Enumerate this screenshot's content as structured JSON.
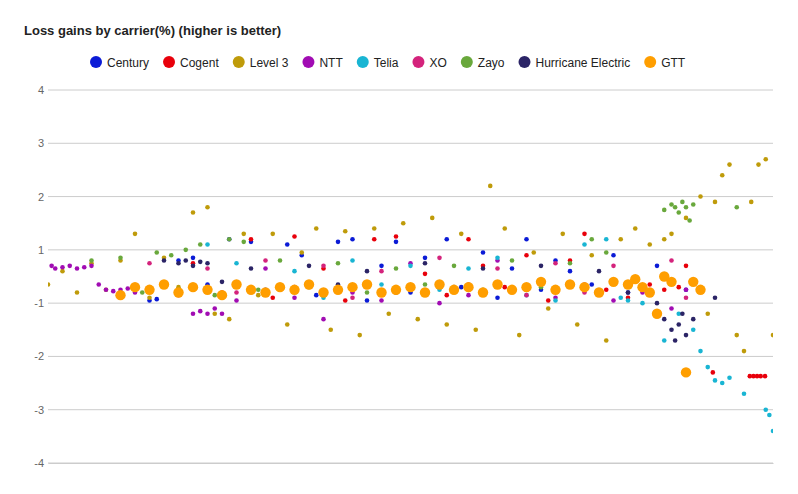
{
  "chart_data": {
    "type": "scatter",
    "title": "Loss gains by carrier(%) (higher is better)",
    "legend": "top",
    "grid": true,
    "tick_labels": "y",
    "xlim": [
      0,
      100
    ],
    "ylim": [
      -4,
      4
    ],
    "yticks": [
      4,
      3,
      2,
      1,
      -1,
      -2,
      -3,
      -4
    ],
    "series": [
      {
        "name": "Century",
        "color": "#0b1bd6",
        "marker": "circle",
        "x": [
          14,
          15,
          18,
          20,
          22,
          25,
          28,
          30,
          33,
          35,
          37,
          40,
          42,
          44,
          46,
          48,
          50,
          52,
          55,
          57,
          60,
          62,
          64,
          66,
          68,
          70,
          72,
          75,
          78,
          80,
          84,
          86,
          88
        ],
        "values": [
          -0.9,
          -0.85,
          0.6,
          0.7,
          -0.3,
          1.2,
          1.15,
          -0.5,
          1.1,
          0.8,
          -0.7,
          1.15,
          1.2,
          -0.9,
          0.4,
          1.15,
          -0.6,
          0.7,
          1.2,
          -0.4,
          0.9,
          -0.8,
          0.3,
          1.2,
          -0.5,
          0.6,
          0.2,
          -0.3,
          0.8,
          -0.6,
          0.4,
          -0.2,
          -0.5
        ]
      },
      {
        "name": "Cogent",
        "color": "#e8000b",
        "marker": "circle",
        "x": [
          20,
          24,
          28,
          31,
          34,
          38,
          41,
          45,
          48,
          52,
          55,
          58,
          60,
          63,
          66,
          69,
          72,
          74,
          77,
          80,
          83,
          85,
          87,
          88,
          91.7,
          96.8,
          97.3,
          97.8,
          98.3,
          98.9
        ],
        "values": [
          0.5,
          -0.6,
          1.2,
          -0.8,
          1.25,
          0.3,
          -0.9,
          1.2,
          1.25,
          0.1,
          -0.7,
          1.2,
          0.4,
          -0.4,
          0.8,
          -0.9,
          0.6,
          1.3,
          -0.5,
          -0.8,
          -0.3,
          -0.5,
          -0.4,
          0.4,
          -2.3,
          -2.37,
          -2.37,
          -2.37,
          -2.37,
          -2.37
        ]
      },
      {
        "name": "Level 3",
        "color": "#bf9b0a",
        "marker": "circle",
        "x": [
          0,
          2,
          4,
          6,
          8,
          10,
          12,
          14,
          16,
          18,
          20,
          22,
          23,
          25,
          27,
          29,
          31,
          33,
          35,
          37,
          39,
          41,
          43,
          45,
          47,
          49,
          51,
          53,
          55,
          57,
          59,
          61,
          63,
          65,
          67,
          69,
          71,
          73,
          75,
          77,
          79,
          81,
          83,
          85,
          86,
          88,
          90,
          91,
          92,
          93,
          94,
          95,
          96,
          97,
          98,
          99,
          100
        ],
        "values": [
          -0.3,
          0.2,
          -0.6,
          0.5,
          -0.5,
          0.6,
          1.3,
          -0.8,
          0.7,
          -0.4,
          1.7,
          1.8,
          -1.2,
          -1.3,
          1.3,
          -0.7,
          1.3,
          -1.4,
          0.9,
          1.4,
          -1.5,
          1.35,
          -1.6,
          1.4,
          -1.2,
          1.5,
          -1.3,
          1.6,
          -1.4,
          1.3,
          -1.5,
          2.2,
          1.4,
          -1.6,
          0.9,
          -1.1,
          1.3,
          -1.4,
          0.8,
          -1.7,
          1.2,
          1.4,
          1.1,
          1.2,
          1.3,
          1.6,
          2.0,
          -1.2,
          1.9,
          2.4,
          2.6,
          -1.6,
          -1.9,
          1.9,
          2.6,
          2.7,
          -1.6
        ]
      },
      {
        "name": "NTT",
        "color": "#a10cb3",
        "marker": "circle",
        "x": [
          0.5,
          1,
          2,
          3,
          4,
          5,
          6,
          7,
          8,
          9,
          10,
          11,
          12,
          20,
          21,
          22,
          23,
          24,
          26,
          30,
          34,
          38,
          42,
          46,
          50,
          54,
          58,
          62,
          66,
          70,
          74,
          78,
          82,
          86,
          88
        ],
        "values": [
          0.4,
          0.3,
          0.35,
          0.4,
          0.3,
          0.35,
          0.4,
          -0.3,
          -0.5,
          -0.55,
          -0.5,
          -0.45,
          -0.6,
          -1.2,
          -1.15,
          -1.2,
          -1.1,
          -1.2,
          -0.9,
          0.3,
          -0.8,
          -1.3,
          -0.6,
          -0.9,
          0.5,
          -1.0,
          -0.7,
          0.6,
          -0.5,
          -0.8,
          -0.3,
          -0.9,
          -0.6,
          -1.1,
          -0.5
        ]
      },
      {
        "name": "Telia",
        "color": "#19b5d3",
        "marker": "circle",
        "x": [
          22,
          26,
          30,
          34,
          38,
          42,
          46,
          50,
          54,
          58,
          62,
          66,
          70,
          74,
          77,
          79,
          80,
          82,
          85,
          87,
          89,
          90,
          91,
          92,
          93,
          94,
          96,
          99,
          99.5,
          100
        ],
        "values": [
          1.1,
          0.5,
          -0.6,
          0.2,
          -0.8,
          0.6,
          -0.3,
          0.4,
          -0.5,
          0.3,
          0.7,
          -0.7,
          -0.9,
          1.1,
          1.2,
          -0.8,
          -0.9,
          -1.0,
          -1.7,
          -1.2,
          -1.5,
          -1.9,
          -2.2,
          -2.45,
          -2.5,
          -2.4,
          -2.7,
          -3.0,
          -3.1,
          -3.4
        ]
      },
      {
        "name": "XO",
        "color": "#d4237c",
        "marker": "circle",
        "x": [
          14,
          18,
          22,
          26,
          30,
          34,
          38,
          42,
          46,
          50,
          54,
          58,
          62,
          66,
          70,
          74,
          78,
          82,
          86,
          88
        ],
        "values": [
          0.5,
          -0.7,
          0.3,
          -0.6,
          0.6,
          -0.4,
          0.4,
          -0.8,
          0.2,
          -0.5,
          0.7,
          -0.3,
          0.3,
          -0.7,
          0.5,
          -0.6,
          0.4,
          -0.4,
          0.6,
          -0.8
        ]
      },
      {
        "name": "Zayo",
        "color": "#69a83c",
        "marker": "circle",
        "x": [
          6,
          10,
          13,
          15,
          17,
          19,
          21,
          23,
          25,
          27,
          29,
          32,
          36,
          40,
          44,
          48,
          52,
          56,
          60,
          64,
          68,
          72,
          75,
          77,
          85,
          86,
          86.5,
          87,
          87.5,
          88,
          88.5,
          89,
          95
        ],
        "values": [
          0.6,
          0.7,
          -0.6,
          0.9,
          0.8,
          1.0,
          1.1,
          -0.7,
          1.2,
          1.15,
          -0.5,
          0.6,
          -0.4,
          0.5,
          -0.6,
          0.3,
          -0.3,
          0.4,
          -0.5,
          0.6,
          -0.4,
          0.5,
          1.2,
          0.9,
          1.75,
          1.85,
          1.8,
          1.7,
          1.9,
          1.8,
          1.55,
          1.85,
          1.8
        ]
      },
      {
        "name": "Hurricane Electric",
        "color": "#2b2466",
        "marker": "circle",
        "x": [
          16,
          18,
          19,
          20,
          21,
          22,
          24,
          28,
          32,
          36,
          40,
          44,
          48,
          52,
          56,
          60,
          64,
          68,
          72,
          76,
          80,
          84,
          85,
          86,
          86.5,
          87,
          87.5,
          88,
          89,
          92
        ],
        "values": [
          0.6,
          0.5,
          0.6,
          0.4,
          0.55,
          0.5,
          -0.2,
          0.3,
          -0.5,
          0.4,
          -0.3,
          0.2,
          -0.6,
          0.5,
          -0.4,
          0.3,
          -0.5,
          0.4,
          -0.3,
          0.2,
          -0.6,
          -1.0,
          -1.3,
          -1.5,
          -1.7,
          -1.4,
          -1.2,
          -1.6,
          -1.3,
          -0.8
        ]
      },
      {
        "name": "GTT",
        "color": "#ff9e00",
        "marker": "large-circle",
        "x": [
          10,
          12,
          14,
          16,
          18,
          20,
          22,
          24,
          26,
          28,
          30,
          32,
          34,
          36,
          38,
          40,
          42,
          44,
          46,
          48,
          50,
          52,
          54,
          56,
          58,
          60,
          62,
          64,
          66,
          68,
          70,
          72,
          74,
          76,
          78,
          80,
          81,
          82,
          83,
          84,
          85,
          86,
          88,
          89,
          90
        ],
        "values": [
          -0.7,
          -0.4,
          -0.5,
          -0.3,
          -0.6,
          -0.4,
          -0.5,
          -0.7,
          -0.3,
          -0.5,
          -0.6,
          -0.4,
          -0.5,
          -0.3,
          -0.6,
          -0.5,
          -0.4,
          -0.3,
          -0.6,
          -0.5,
          -0.4,
          -0.6,
          -0.3,
          -0.5,
          -0.4,
          -0.6,
          -0.3,
          -0.5,
          -0.4,
          -0.2,
          -0.5,
          -0.3,
          -0.4,
          -0.6,
          -0.2,
          -0.3,
          -0.1,
          -0.4,
          -0.6,
          -1.2,
          0.0,
          -0.2,
          -2.3,
          -0.2,
          -0.5
        ]
      }
    ]
  }
}
